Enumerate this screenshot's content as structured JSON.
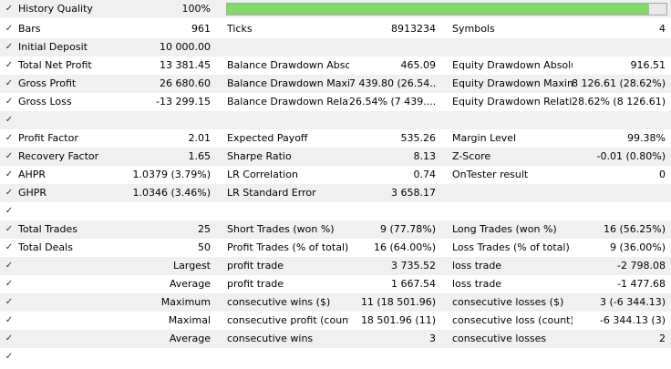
{
  "check_mark": "✓",
  "colors": {
    "quality_fill": "#80d968",
    "stripe": "#f0f0f0"
  },
  "history": {
    "label": "History Quality",
    "value": "100%",
    "quality_percent": 100
  },
  "rows": [
    {
      "c1": "Bars",
      "v1": "961",
      "c2": "Ticks",
      "v2": "8913234",
      "c3": "Symbols",
      "v3": "4"
    },
    {
      "c1": "Initial Deposit",
      "v1": "10 000.00",
      "c2": "",
      "v2": "",
      "c3": "",
      "v3": ""
    },
    {
      "c1": "Total Net Profit",
      "v1": "13 381.45",
      "c2": "Balance Drawdown Absol...",
      "v2": "465.09",
      "c3": "Equity Drawdown Absolute",
      "v3": "916.51"
    },
    {
      "c1": "Gross Profit",
      "v1": "26 680.60",
      "c2": "Balance Drawdown Maximal",
      "v2": "7 439.80 (26.54...",
      "c3": "Equity Drawdown Maximal",
      "v3": "8 126.61 (28.62%)"
    },
    {
      "c1": "Gross Loss",
      "v1": "-13 299.15",
      "c2": "Balance Drawdown Relative",
      "v2": "26.54% (7 439....",
      "c3": "Equity Drawdown Relative",
      "v3": "28.62% (8 126.61)"
    },
    {
      "c1": "",
      "v1": "",
      "c2": "",
      "v2": "",
      "c3": "",
      "v3": ""
    },
    {
      "c1": "Profit Factor",
      "v1": "2.01",
      "c2": "Expected Payoff",
      "v2": "535.26",
      "c3": "Margin Level",
      "v3": "99.38%"
    },
    {
      "c1": "Recovery Factor",
      "v1": "1.65",
      "c2": "Sharpe Ratio",
      "v2": "8.13",
      "c3": "Z-Score",
      "v3": "-0.01 (0.80%)"
    },
    {
      "c1": "AHPR",
      "v1": "1.0379 (3.79%)",
      "c2": "LR Correlation",
      "v2": "0.74",
      "c3": "OnTester result",
      "v3": "0"
    },
    {
      "c1": "GHPR",
      "v1": "1.0346 (3.46%)",
      "c2": "LR Standard Error",
      "v2": "3 658.17",
      "c3": "",
      "v3": ""
    },
    {
      "c1": "",
      "v1": "",
      "c2": "",
      "v2": "",
      "c3": "",
      "v3": ""
    },
    {
      "c1": "Total Trades",
      "v1": "25",
      "c2": "Short Trades (won %)",
      "v2": "9 (77.78%)",
      "c3": "Long Trades (won %)",
      "v3": "16 (56.25%)"
    },
    {
      "c1": "Total Deals",
      "v1": "50",
      "c2": "Profit Trades (% of total)",
      "v2": "16 (64.00%)",
      "c3": "Loss Trades (% of total)",
      "v3": "9 (36.00%)"
    },
    {
      "c1": "",
      "v1": "Largest",
      "c2": "profit trade",
      "v2": "3 735.52",
      "c3": "loss trade",
      "v3": "-2 798.08"
    },
    {
      "c1": "",
      "v1": "Average",
      "c2": "profit trade",
      "v2": "1 667.54",
      "c3": "loss trade",
      "v3": "-1 477.68"
    },
    {
      "c1": "",
      "v1": "Maximum",
      "c2": "consecutive wins ($)",
      "v2": "11 (18 501.96)",
      "c3": "consecutive losses ($)",
      "v3": "3 (-6 344.13)"
    },
    {
      "c1": "",
      "v1": "Maximal",
      "c2": "consecutive profit (count)",
      "v2": "18 501.96 (11)",
      "c3": "consecutive loss (count)",
      "v3": "-6 344.13 (3)"
    },
    {
      "c1": "",
      "v1": "Average",
      "c2": "consecutive wins",
      "v2": "3",
      "c3": "consecutive losses",
      "v3": "2"
    },
    {
      "c1": "",
      "v1": "",
      "c2": "",
      "v2": "",
      "c3": "",
      "v3": ""
    }
  ]
}
